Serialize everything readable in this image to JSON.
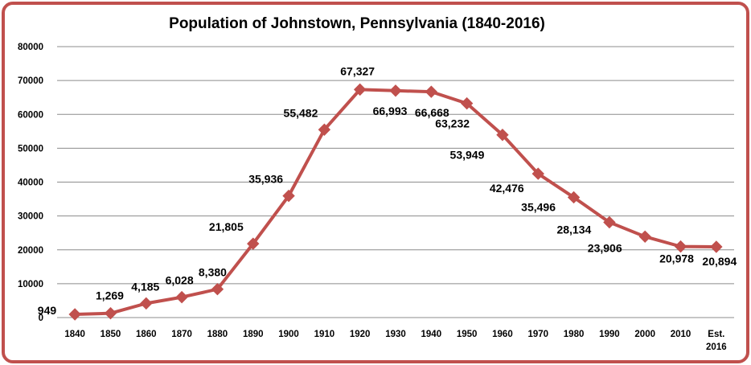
{
  "chart_data": {
    "type": "line",
    "title": "Population of Johnstown, Pennsylvania (1840-2016)",
    "xlabel": "",
    "ylabel": "",
    "ylim": [
      0,
      80000
    ],
    "yticks": [
      "0",
      "10000",
      "20000",
      "30000",
      "40000",
      "50000",
      "60000",
      "70000",
      "80000"
    ],
    "grid": true,
    "legend": "none",
    "categories": [
      "1840",
      "1850",
      "1860",
      "1870",
      "1880",
      "1890",
      "1900",
      "1910",
      "1920",
      "1930",
      "1940",
      "1950",
      "1960",
      "1970",
      "1980",
      "1990",
      "2000",
      "2010",
      "Est.\n2016"
    ],
    "series": [
      {
        "color": "#c0504d",
        "values": [
          949,
          1269,
          4185,
          6028,
          8380,
          21805,
          35936,
          55482,
          67327,
          66993,
          66668,
          63232,
          53949,
          42476,
          35496,
          28134,
          23906,
          20978,
          20894
        ],
        "labels": [
          "949",
          "1,269",
          "4,185",
          "6,028",
          "8,380",
          "21,805",
          "35,936",
          "55,482",
          "67,327",
          "66,993",
          "66,668",
          "63,232",
          "53,949",
          "42,476",
          "35,496",
          "28,134",
          "23,906",
          "20,978",
          "20,894"
        ]
      }
    ]
  }
}
